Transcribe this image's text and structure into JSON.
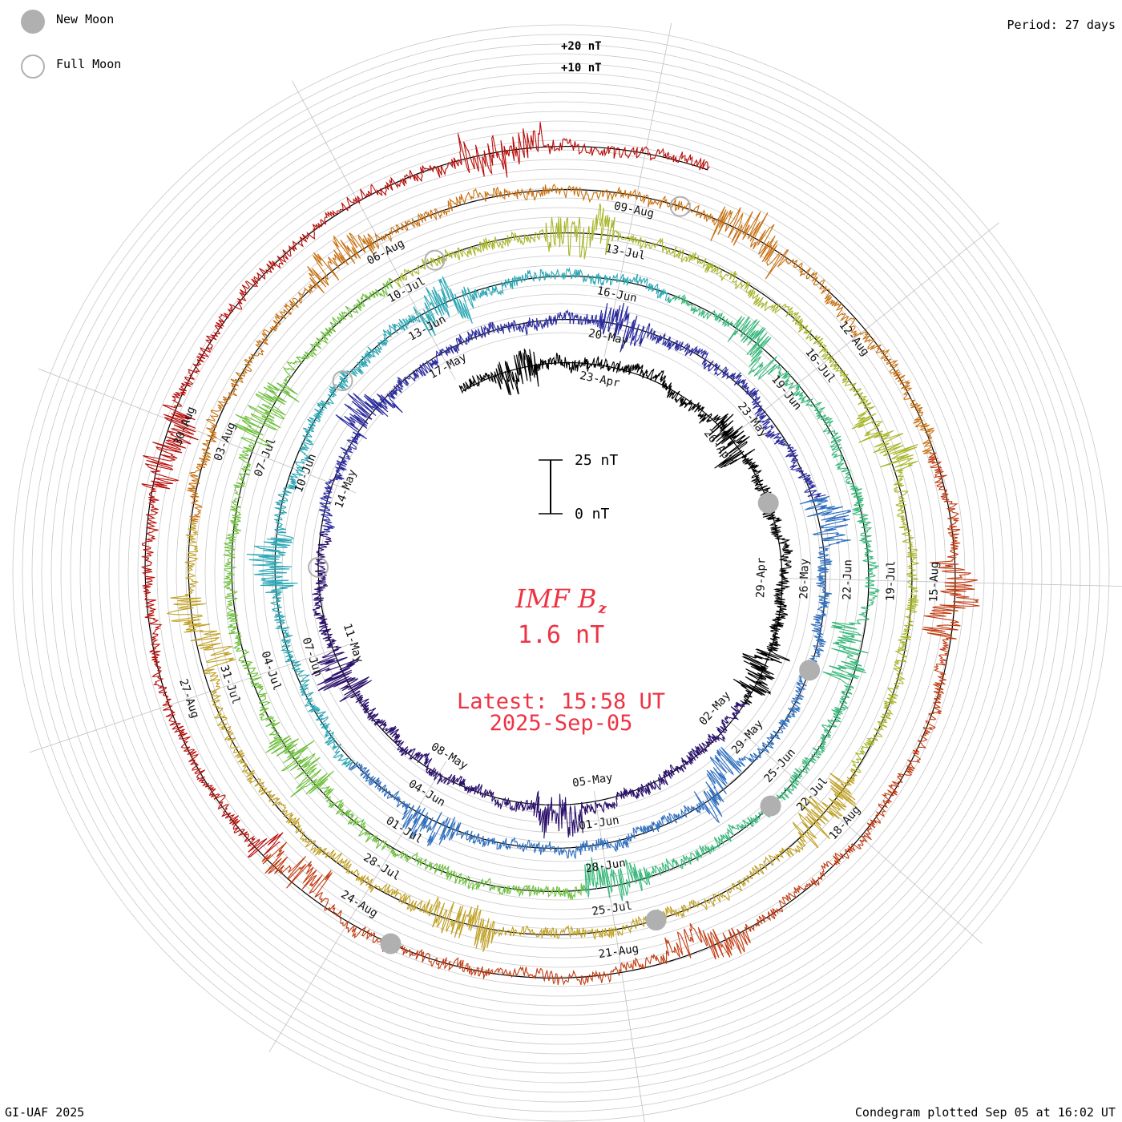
{
  "header": {
    "period": "Period: 27 days",
    "credit": "GI-UAF 2025",
    "plotted": "Condegram plotted Sep 05 at 16:02 UT"
  },
  "legend": {
    "new_moon": "New Moon",
    "full_moon": "Full Moon",
    "new_moon_color": "#b0b0b0",
    "full_moon_color": "#b0b0b0"
  },
  "center": {
    "parameter": "IMF B",
    "parameter_sub": "z",
    "current_value": "1.6 nT",
    "latest_label": "Latest: 15:58 UT",
    "latest_date": "2025-Sep-05",
    "text_color": "#ee3344",
    "scale_top": "25 nT",
    "scale_bottom": "0 nT"
  },
  "chart_data": {
    "type": "line",
    "layout": "spiral condegram",
    "title": "IMF Bz",
    "period_days": 27,
    "start_date": "2025-04-20",
    "end_date": "2025-09-05",
    "ylim": [
      -20,
      20
    ],
    "unit": "nT",
    "offset_labels": [
      "+20 nT",
      "+10 nT"
    ],
    "series_colors": [
      "#000000",
      "#2a0f6b",
      "#2a2a9e",
      "#2f6fbf",
      "#2aa7b4",
      "#36b87a",
      "#6cbf3a",
      "#a8b62a",
      "#c0a022",
      "#c8700f",
      "#c23a10",
      "#b80c08"
    ],
    "date_labels": [
      "23-Apr",
      "26-Apr",
      "29-Apr",
      "02-May",
      "05-May",
      "08-May",
      "11-May",
      "14-May",
      "17-May",
      "20-May",
      "23-May",
      "26-May",
      "29-May",
      "01-Jun",
      "04-Jun",
      "07-Jun",
      "10-Jun",
      "13-Jun",
      "16-Jun",
      "19-Jun",
      "22-Jun",
      "25-Jun",
      "28-Jun",
      "01-Jul",
      "04-Jul",
      "07-Jul",
      "10-Jul",
      "13-Jul",
      "16-Jul",
      "19-Jul",
      "22-Jul",
      "25-Jul",
      "28-Jul",
      "31-Jul",
      "03-Aug",
      "06-Aug",
      "09-Aug",
      "12-Aug",
      "15-Aug",
      "18-Aug",
      "21-Aug",
      "24-Aug",
      "27-Aug",
      "30-Aug"
    ],
    "new_moons": [
      "2025-04-27",
      "2025-05-27",
      "2025-06-25",
      "2025-07-24",
      "2025-08-23"
    ],
    "full_moons": [
      "2025-05-12",
      "2025-06-11",
      "2025-07-10",
      "2025-08-09"
    ],
    "latest_value": 1.6
  }
}
